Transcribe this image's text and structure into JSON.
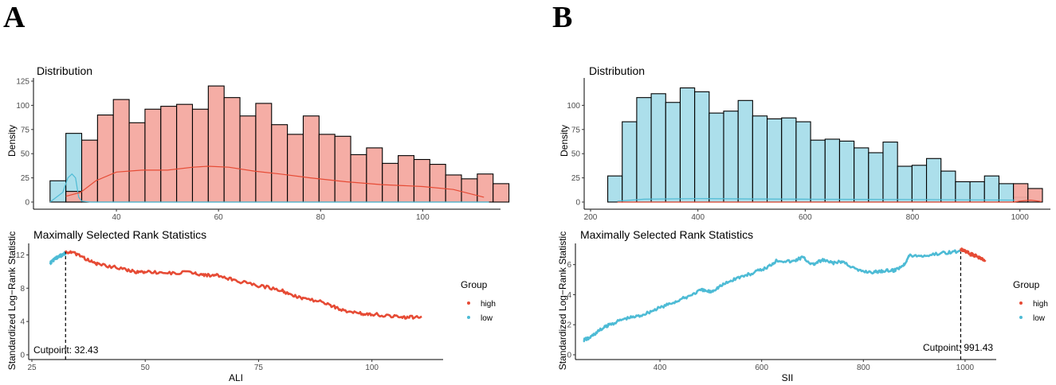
{
  "colors": {
    "high": "#E64B35",
    "low": "#4DBBD5",
    "high_fill": "#F4A9A0",
    "low_fill": "#A8DDEA"
  },
  "panels": [
    {
      "letter": "A",
      "legend": {
        "title": "Group",
        "items": [
          "high",
          "low"
        ]
      }
    },
    {
      "letter": "B",
      "legend": {
        "title": "Group",
        "items": [
          "high",
          "low"
        ]
      }
    }
  ],
  "chart_data": [
    {
      "id": "A-dist",
      "type": "bar",
      "title": "Distribution",
      "xlabel": "",
      "ylabel": "Density",
      "xlim": [
        25,
        114
      ],
      "ylim": [
        0,
        125
      ],
      "xticks": [
        40,
        60,
        80,
        100
      ],
      "yticks": [
        0,
        25,
        50,
        75,
        100,
        125
      ],
      "series": [
        {
          "name": "low",
          "bins": [
            [
              27,
              30.1,
              22
            ],
            [
              30.1,
              33.2,
              71
            ]
          ]
        },
        {
          "name": "high",
          "bins": [
            [
              30.1,
              33.2,
              11
            ],
            [
              33.2,
              36.3,
              64
            ],
            [
              36.3,
              39.4,
              90
            ],
            [
              39.4,
              42.5,
              106
            ],
            [
              42.5,
              45.6,
              82
            ],
            [
              45.6,
              48.7,
              96
            ],
            [
              48.7,
              51.8,
              99
            ],
            [
              51.8,
              54.9,
              101
            ],
            [
              54.9,
              58,
              96
            ],
            [
              58,
              61.1,
              120
            ],
            [
              61.1,
              64.2,
              108
            ],
            [
              64.2,
              67.3,
              89
            ],
            [
              67.3,
              70.4,
              102
            ],
            [
              70.4,
              73.5,
              80
            ],
            [
              73.5,
              76.6,
              70
            ],
            [
              76.6,
              79.7,
              89
            ],
            [
              79.7,
              82.8,
              70
            ],
            [
              82.8,
              85.9,
              68
            ],
            [
              85.9,
              89,
              49
            ],
            [
              89,
              92.1,
              56
            ],
            [
              92.1,
              95.2,
              40
            ],
            [
              95.2,
              98.3,
              48
            ],
            [
              98.3,
              101.4,
              44
            ],
            [
              101.4,
              104.5,
              39
            ],
            [
              104.5,
              107.6,
              28
            ],
            [
              107.6,
              110.7,
              24
            ],
            [
              110.7,
              113.8,
              29
            ],
            [
              113.8,
              116.9,
              19
            ]
          ]
        }
      ],
      "density_curves": [
        {
          "name": "low",
          "points": [
            [
              27,
              0
            ],
            [
              29.5,
              10
            ],
            [
              30.5,
              25
            ],
            [
              31.3,
              29
            ],
            [
              32,
              25
            ],
            [
              32.6,
              5
            ],
            [
              33.2,
              1
            ],
            [
              35,
              0
            ],
            [
              113,
              0
            ]
          ]
        },
        {
          "name": "high",
          "points": [
            [
              30.1,
              6
            ],
            [
              33,
              10
            ],
            [
              36,
              22
            ],
            [
              40,
              31
            ],
            [
              45,
              33
            ],
            [
              50,
              33
            ],
            [
              55,
              36
            ],
            [
              58,
              37
            ],
            [
              62,
              36
            ],
            [
              67,
              32
            ],
            [
              72,
              29
            ],
            [
              78,
              25
            ],
            [
              85,
              21
            ],
            [
              92,
              18
            ],
            [
              100,
              16
            ],
            [
              106,
              13
            ],
            [
              112,
              5
            ]
          ]
        }
      ]
    },
    {
      "id": "A-rank",
      "type": "scatter",
      "title": "Maximally Selected Rank Statistics",
      "xlabel": "ALI",
      "ylabel": "Standardized Log−Rank Statistic",
      "xlim": [
        25,
        115
      ],
      "ylim": [
        0,
        13
      ],
      "xticks": [
        25,
        50,
        75,
        100
      ],
      "yticks": [
        0,
        4,
        8,
        12
      ],
      "cutpoint": 32.43,
      "cutpoint_label": "Cutpoint: 32.43",
      "low_path": [
        [
          29,
          11.0
        ],
        [
          30,
          11.5
        ],
        [
          31,
          11.8
        ],
        [
          32,
          12.1
        ],
        [
          32.43,
          12.2
        ]
      ],
      "high_path": [
        [
          32.43,
          12.4
        ],
        [
          35,
          12.1
        ],
        [
          38,
          11.2
        ],
        [
          40,
          10.8
        ],
        [
          45,
          10.4
        ],
        [
          48,
          9.9
        ],
        [
          50,
          10.0
        ],
        [
          55,
          9.8
        ],
        [
          60,
          9.9
        ],
        [
          63,
          9.6
        ],
        [
          66,
          9.5
        ],
        [
          70,
          8.9
        ],
        [
          75,
          8.3
        ],
        [
          80,
          7.8
        ],
        [
          82,
          7.2
        ],
        [
          85,
          6.8
        ],
        [
          90,
          6.2
        ],
        [
          93,
          5.4
        ],
        [
          97,
          5.0
        ],
        [
          100,
          4.9
        ],
        [
          105,
          4.6
        ],
        [
          108,
          4.5
        ],
        [
          111,
          4.6
        ]
      ]
    },
    {
      "id": "B-dist",
      "type": "bar",
      "title": "Distribution",
      "xlabel": "",
      "ylabel": "Density",
      "xlim": [
        200,
        1045
      ],
      "ylim": [
        0,
        125
      ],
      "xticks": [
        200,
        400,
        600,
        800,
        1000
      ],
      "yticks": [
        0,
        25,
        50,
        75,
        100
      ],
      "series": [
        {
          "name": "low",
          "bins": [
            [
              232,
              259,
              27
            ],
            [
              259,
              286,
              83
            ],
            [
              286,
              313,
              108
            ],
            [
              313,
              340,
              112
            ],
            [
              340,
              367,
              103
            ],
            [
              367,
              394,
              118
            ],
            [
              394,
              421,
              114
            ],
            [
              421,
              448,
              92
            ],
            [
              448,
              475,
              94
            ],
            [
              475,
              502,
              105
            ],
            [
              502,
              529,
              89
            ],
            [
              529,
              556,
              86
            ],
            [
              556,
              583,
              87
            ],
            [
              583,
              610,
              83
            ],
            [
              610,
              637,
              64
            ],
            [
              637,
              664,
              65
            ],
            [
              664,
              691,
              63
            ],
            [
              691,
              718,
              56
            ],
            [
              718,
              745,
              51
            ],
            [
              745,
              772,
              62
            ],
            [
              772,
              799,
              37
            ],
            [
              799,
              826,
              38
            ],
            [
              826,
              853,
              45
            ],
            [
              853,
              880,
              32
            ],
            [
              880,
              907,
              21
            ],
            [
              907,
              934,
              21
            ],
            [
              934,
              961,
              27
            ],
            [
              961,
              988,
              19
            ],
            [
              988,
              1015,
              5
            ]
          ]
        },
        {
          "name": "high",
          "bins": [
            [
              988,
              1015,
              19
            ],
            [
              1015,
              1042,
              14
            ]
          ]
        }
      ],
      "density_curves": [
        {
          "name": "low",
          "points": [
            [
              250,
              1
            ],
            [
              300,
              3
            ],
            [
              400,
              3.5
            ],
            [
              500,
              3.2
            ],
            [
              600,
              3
            ],
            [
              700,
              2.8
            ],
            [
              800,
              2.6
            ],
            [
              900,
              2.3
            ],
            [
              990,
              2
            ]
          ]
        },
        {
          "name": "high",
          "points": [
            [
              250,
              0
            ],
            [
              990,
              0
            ],
            [
              1000,
              1
            ],
            [
              1020,
              2
            ],
            [
              1040,
              0.5
            ]
          ]
        }
      ]
    },
    {
      "id": "B-rank",
      "type": "scatter",
      "title": "Maximally Selected Rank Statistics",
      "xlabel": "SII",
      "ylabel": "Standardized Log−Rank Statistic",
      "xlim": [
        240,
        1055
      ],
      "ylim": [
        0,
        7.2
      ],
      "xticks": [
        400,
        600,
        800,
        1000
      ],
      "yticks": [
        0,
        2,
        4,
        6
      ],
      "cutpoint": 991.43,
      "cutpoint_label": "Cutpoint: 991.43",
      "low_path": [
        [
          250,
          1.0
        ],
        [
          260,
          1.1
        ],
        [
          280,
          1.6
        ],
        [
          300,
          2.0
        ],
        [
          330,
          2.4
        ],
        [
          360,
          2.6
        ],
        [
          390,
          3.0
        ],
        [
          420,
          3.4
        ],
        [
          450,
          3.8
        ],
        [
          480,
          4.3
        ],
        [
          500,
          4.2
        ],
        [
          520,
          4.6
        ],
        [
          550,
          5.1
        ],
        [
          580,
          5.4
        ],
        [
          610,
          5.8
        ],
        [
          630,
          6.3
        ],
        [
          660,
          6.2
        ],
        [
          680,
          6.5
        ],
        [
          700,
          6.0
        ],
        [
          720,
          6.3
        ],
        [
          740,
          6.1
        ],
        [
          760,
          6.2
        ],
        [
          790,
          5.6
        ],
        [
          820,
          5.5
        ],
        [
          840,
          5.6
        ],
        [
          860,
          5.6
        ],
        [
          880,
          6.0
        ],
        [
          890,
          6.6
        ],
        [
          920,
          6.6
        ],
        [
          960,
          6.8
        ],
        [
          991.43,
          6.9
        ]
      ],
      "high_path": [
        [
          991.43,
          7.0
        ],
        [
          1000,
          6.9
        ],
        [
          1010,
          6.7
        ],
        [
          1020,
          6.6
        ],
        [
          1030,
          6.4
        ],
        [
          1040,
          6.3
        ]
      ]
    }
  ]
}
